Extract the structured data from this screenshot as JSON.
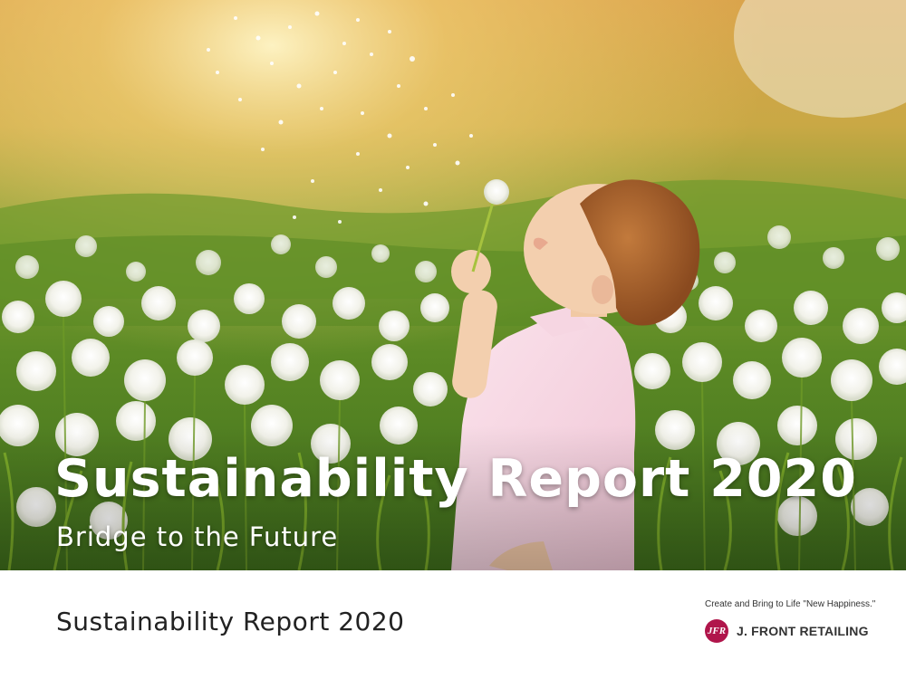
{
  "cover": {
    "title": "Sustainability Report 2020",
    "subtitle": "Bridge to the Future"
  },
  "footer": {
    "title": "Sustainability Report 2020",
    "tagline": "Create and Bring to Life \"New Happiness.\"",
    "logo_text": "JFR",
    "company": "J. FRONT RETAILING"
  },
  "colors": {
    "brand": "#b0154b",
    "text_dark": "#222222",
    "title_white": "#ffffff"
  }
}
